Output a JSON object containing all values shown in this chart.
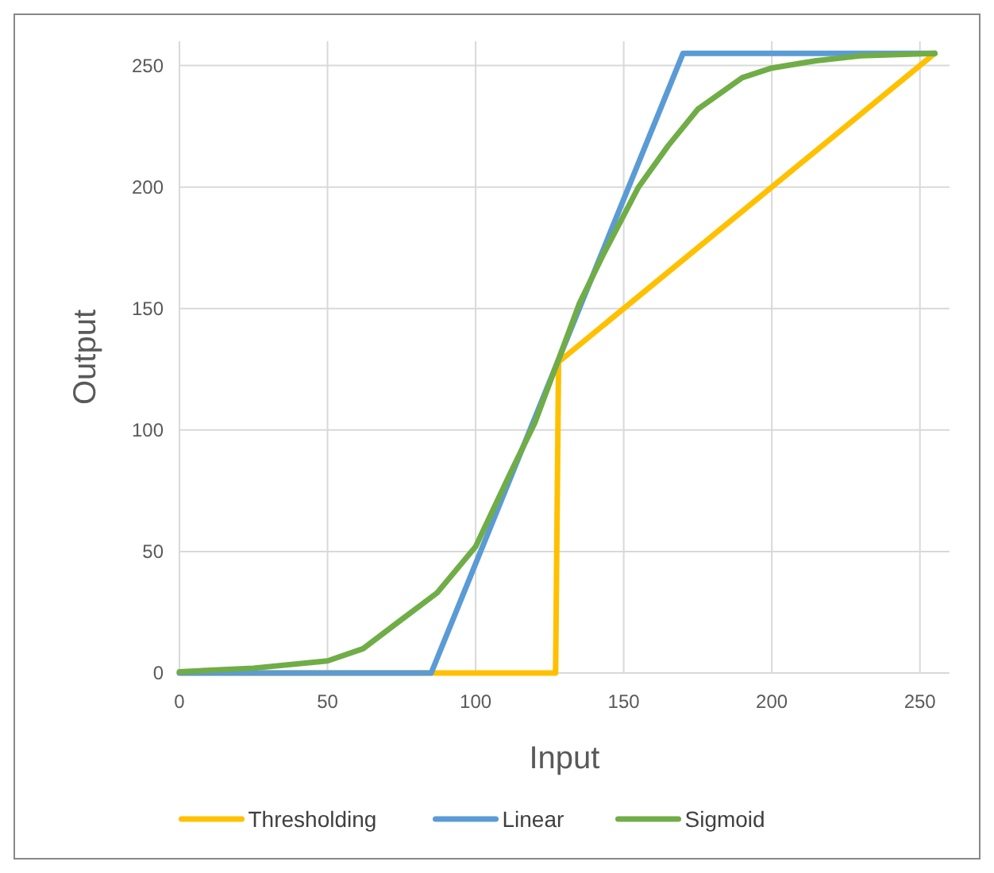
{
  "chart_data": {
    "type": "line",
    "xlabel": "Input",
    "ylabel": "Output",
    "xlim": [
      0,
      260
    ],
    "ylim": [
      0,
      260
    ],
    "xticks": [
      0,
      50,
      100,
      150,
      200,
      250
    ],
    "yticks": [
      0,
      50,
      100,
      150,
      200,
      250
    ],
    "grid": true,
    "legend": "bottom",
    "marker": "none",
    "line_style": "solid",
    "series": [
      {
        "name": "Thresholding",
        "color": "#ffc000",
        "x": [
          0,
          127,
          128,
          255
        ],
        "values": [
          0,
          0,
          128,
          255
        ]
      },
      {
        "name": "Linear",
        "color": "#5b9bd5",
        "x": [
          0,
          85,
          170,
          255
        ],
        "values": [
          0,
          0,
          255,
          255
        ]
      },
      {
        "name": "Sigmoid",
        "color": "#70ad47",
        "x": [
          0,
          25,
          50,
          62,
          75,
          87,
          100,
          112,
          120,
          127.5,
          135,
          143,
          155,
          165,
          175,
          190,
          200,
          215,
          230,
          255
        ],
        "values": [
          0.5,
          2,
          5,
          10,
          22,
          33,
          52,
          83,
          103,
          127.5,
          152,
          172,
          200,
          217,
          232,
          245,
          249,
          252,
          254,
          255
        ]
      }
    ]
  }
}
